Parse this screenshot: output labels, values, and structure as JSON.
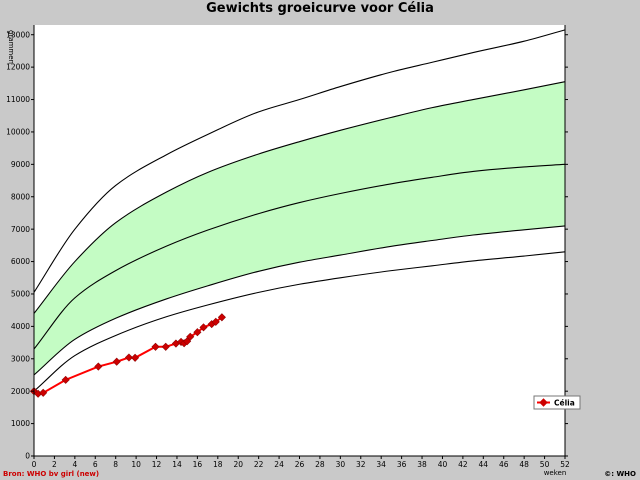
{
  "chart_data": {
    "type": "line",
    "title": "Gewichts groeicurve voor Célia",
    "xlabel": "weken",
    "ylabel": "grammen",
    "xlim": [
      0,
      52
    ],
    "ylim": [
      0,
      13300
    ],
    "x_ticks": [
      0,
      2,
      4,
      6,
      8,
      10,
      12,
      14,
      16,
      18,
      20,
      22,
      24,
      26,
      28,
      30,
      32,
      34,
      36,
      38,
      40,
      42,
      44,
      46,
      48,
      50,
      52
    ],
    "y_ticks": [
      0,
      1000,
      2000,
      3000,
      4000,
      5000,
      6000,
      7000,
      8000,
      9000,
      10000,
      11000,
      12000,
      13000
    ],
    "grid": false,
    "legend_position": "right",
    "colors": {
      "band_fill": "#c4fcc4",
      "child_line": "#ff0000",
      "child_marker": "#cc0000",
      "reference": "#000000",
      "plot_bg": "#ffffff"
    },
    "reference_x": [
      0,
      4,
      8,
      13,
      17,
      22,
      26,
      30,
      35,
      39,
      43,
      48,
      52
    ],
    "reference_curves": [
      {
        "values": [
          2000,
          3100,
          3720,
          4300,
          4660,
          5050,
          5300,
          5500,
          5720,
          5870,
          6020,
          6170,
          6300
        ]
      },
      {
        "values": [
          2500,
          3600,
          4250,
          4850,
          5250,
          5700,
          5980,
          6200,
          6470,
          6650,
          6820,
          6980,
          7100
        ]
      },
      {
        "values": [
          3300,
          4880,
          5720,
          6480,
          6970,
          7480,
          7820,
          8100,
          8400,
          8600,
          8780,
          8920,
          9000
        ]
      },
      {
        "values": [
          4400,
          6000,
          7200,
          8150,
          8750,
          9320,
          9700,
          10050,
          10450,
          10750,
          11000,
          11300,
          11550
        ]
      },
      {
        "values": [
          5050,
          7000,
          8350,
          9300,
          9920,
          10620,
          11000,
          11400,
          11850,
          12150,
          12450,
          12800,
          13150
        ]
      }
    ],
    "series": [
      {
        "name": "Célia",
        "x": [
          0,
          0.4,
          0.9,
          3.1,
          6.3,
          8.1,
          9.3,
          9.9,
          11.9,
          12.9,
          13.9,
          14.4,
          14.7,
          15.0,
          15.3,
          16.0,
          16.6,
          17.4,
          17.8,
          18.4
        ],
        "y": [
          2000,
          1920,
          1950,
          2350,
          2760,
          2910,
          3040,
          3030,
          3370,
          3370,
          3470,
          3520,
          3480,
          3540,
          3680,
          3820,
          3970,
          4070,
          4140,
          4280
        ]
      }
    ]
  },
  "footer": {
    "source": "Bron: WHO bv girl (new)",
    "credit": "©: WHO"
  }
}
